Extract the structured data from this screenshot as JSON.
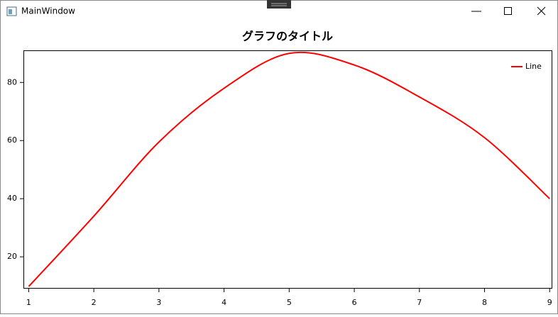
{
  "window": {
    "title": "MainWindow"
  },
  "chart_data": {
    "type": "line",
    "title": "グラフのタイトル",
    "x": [
      1,
      2,
      3,
      4,
      5,
      6,
      7,
      8,
      9
    ],
    "series": [
      {
        "name": "Line",
        "color": "#ff0000",
        "values": [
          9.8,
          34,
          59.5,
          78,
          90,
          86,
          75,
          61,
          40
        ]
      }
    ],
    "xlim": [
      0.93,
      9.03
    ],
    "ylim": [
      9.3,
      90.8
    ],
    "xticks": [
      1,
      2,
      3,
      4,
      5,
      6,
      7,
      8,
      9
    ],
    "yticks": [
      20,
      40,
      60,
      80
    ],
    "legend": "top-right"
  }
}
